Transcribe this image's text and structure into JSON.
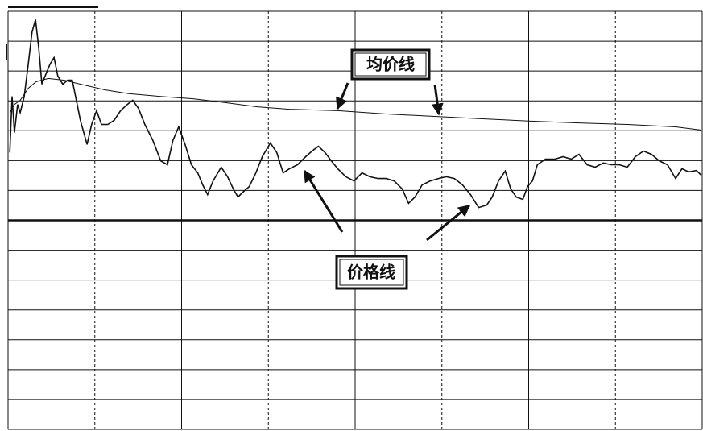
{
  "chart_data": {
    "type": "line",
    "annotations": [
      "均价线",
      "价格线"
    ],
    "xlim": [
      0,
      240
    ],
    "xticks": [
      0,
      30,
      60,
      90,
      120,
      150,
      180,
      210,
      240
    ],
    "ylim": [
      -7,
      7
    ],
    "yticks": [
      -7,
      -6,
      -5,
      -4,
      -3,
      -2,
      -1,
      0,
      1,
      2,
      3,
      4,
      5,
      6,
      7
    ],
    "grid": true,
    "series": [
      {
        "color": "#111111",
        "x": [
          0.6,
          1.4,
          2.2,
          3.3,
          4.2,
          5.6,
          7.0,
          8.3,
          9.5,
          10.6,
          11.7,
          12.8,
          14.5,
          15.9,
          17.2,
          18.9,
          20.6,
          22.2,
          23.6,
          25.0,
          27.3,
          28.9,
          30.6,
          32.3,
          34.5,
          36.7,
          38.9,
          41.2,
          43.1,
          45.1,
          47.3,
          50.1,
          52.8,
          55.1,
          57.0,
          59.0,
          61.2,
          63.4,
          65.6,
          67.3,
          69.0,
          70.9,
          73.7,
          75.9,
          77.9,
          79.5,
          81.5,
          83.4,
          85.7,
          87.9,
          90.7,
          92.9,
          95.1,
          97.3,
          100.1,
          102.9,
          105.1,
          107.3,
          109.6,
          111.8,
          114.0,
          116.8,
          119.6,
          122.4,
          125.1,
          127.9,
          130.7,
          133.5,
          136.3,
          138.5,
          140.7,
          143.2,
          146.0,
          148.8,
          151.6,
          154.3,
          157.1,
          159.9,
          162.7,
          165.5,
          167.4,
          169.6,
          171.9,
          173.8,
          175.7,
          178.0,
          179.6,
          181.3,
          183.0,
          185.8,
          189.1,
          191.9,
          194.7,
          197.4,
          200.2,
          203.0,
          205.8,
          208.6,
          211.3,
          214.1,
          216.9,
          219.7,
          222.5,
          225.2,
          228.0,
          230.8,
          233.0,
          235.3,
          238.0,
          239.7
        ],
        "values": [
          2.27,
          4.15,
          2.94,
          3.88,
          3.61,
          4.15,
          5.23,
          6.31,
          6.72,
          5.77,
          4.56,
          4.83,
          5.23,
          5.45,
          4.83,
          4.56,
          4.69,
          4.69,
          4.02,
          3.35,
          2.54,
          3.21,
          3.67,
          3.21,
          3.21,
          3.35,
          3.67,
          3.88,
          4.02,
          3.75,
          3.21,
          2.67,
          1.99,
          1.86,
          2.67,
          3.13,
          2.54,
          1.86,
          1.59,
          1.19,
          0.86,
          1.32,
          1.78,
          1.46,
          1.05,
          0.78,
          0.97,
          1.13,
          1.59,
          2.13,
          2.59,
          2.27,
          1.59,
          1.73,
          1.86,
          2.13,
          2.32,
          2.48,
          2.27,
          1.99,
          1.73,
          1.46,
          1.32,
          1.59,
          1.46,
          1.4,
          1.4,
          1.32,
          1.05,
          0.57,
          0.78,
          1.19,
          1.32,
          1.4,
          1.46,
          1.4,
          1.19,
          0.86,
          0.43,
          0.51,
          0.78,
          1.32,
          1.65,
          1.05,
          0.78,
          0.7,
          1.13,
          1.32,
          1.86,
          2.05,
          2.05,
          2.13,
          2.05,
          2.21,
          1.86,
          1.78,
          1.92,
          1.86,
          1.86,
          1.78,
          2.13,
          2.32,
          2.21,
          1.99,
          1.86,
          1.4,
          1.73,
          1.62,
          1.67,
          1.51
        ]
      },
      {
        "color": "#111111",
        "x": [
          0.6,
          2.2,
          4.2,
          7.0,
          9.7,
          13.9,
          19.5,
          25.0,
          33.4,
          41.7,
          52.8,
          64.0,
          75.1,
          86.2,
          97.3,
          114.0,
          130.7,
          147.4,
          164.1,
          180.8,
          197.4,
          214.1,
          230.8,
          239.7
        ],
        "values": [
          3.61,
          3.88,
          4.02,
          4.42,
          4.64,
          4.75,
          4.69,
          4.56,
          4.37,
          4.24,
          4.15,
          4.07,
          3.94,
          3.8,
          3.72,
          3.67,
          3.56,
          3.48,
          3.4,
          3.32,
          3.26,
          3.21,
          3.13,
          3.02
        ]
      }
    ]
  }
}
